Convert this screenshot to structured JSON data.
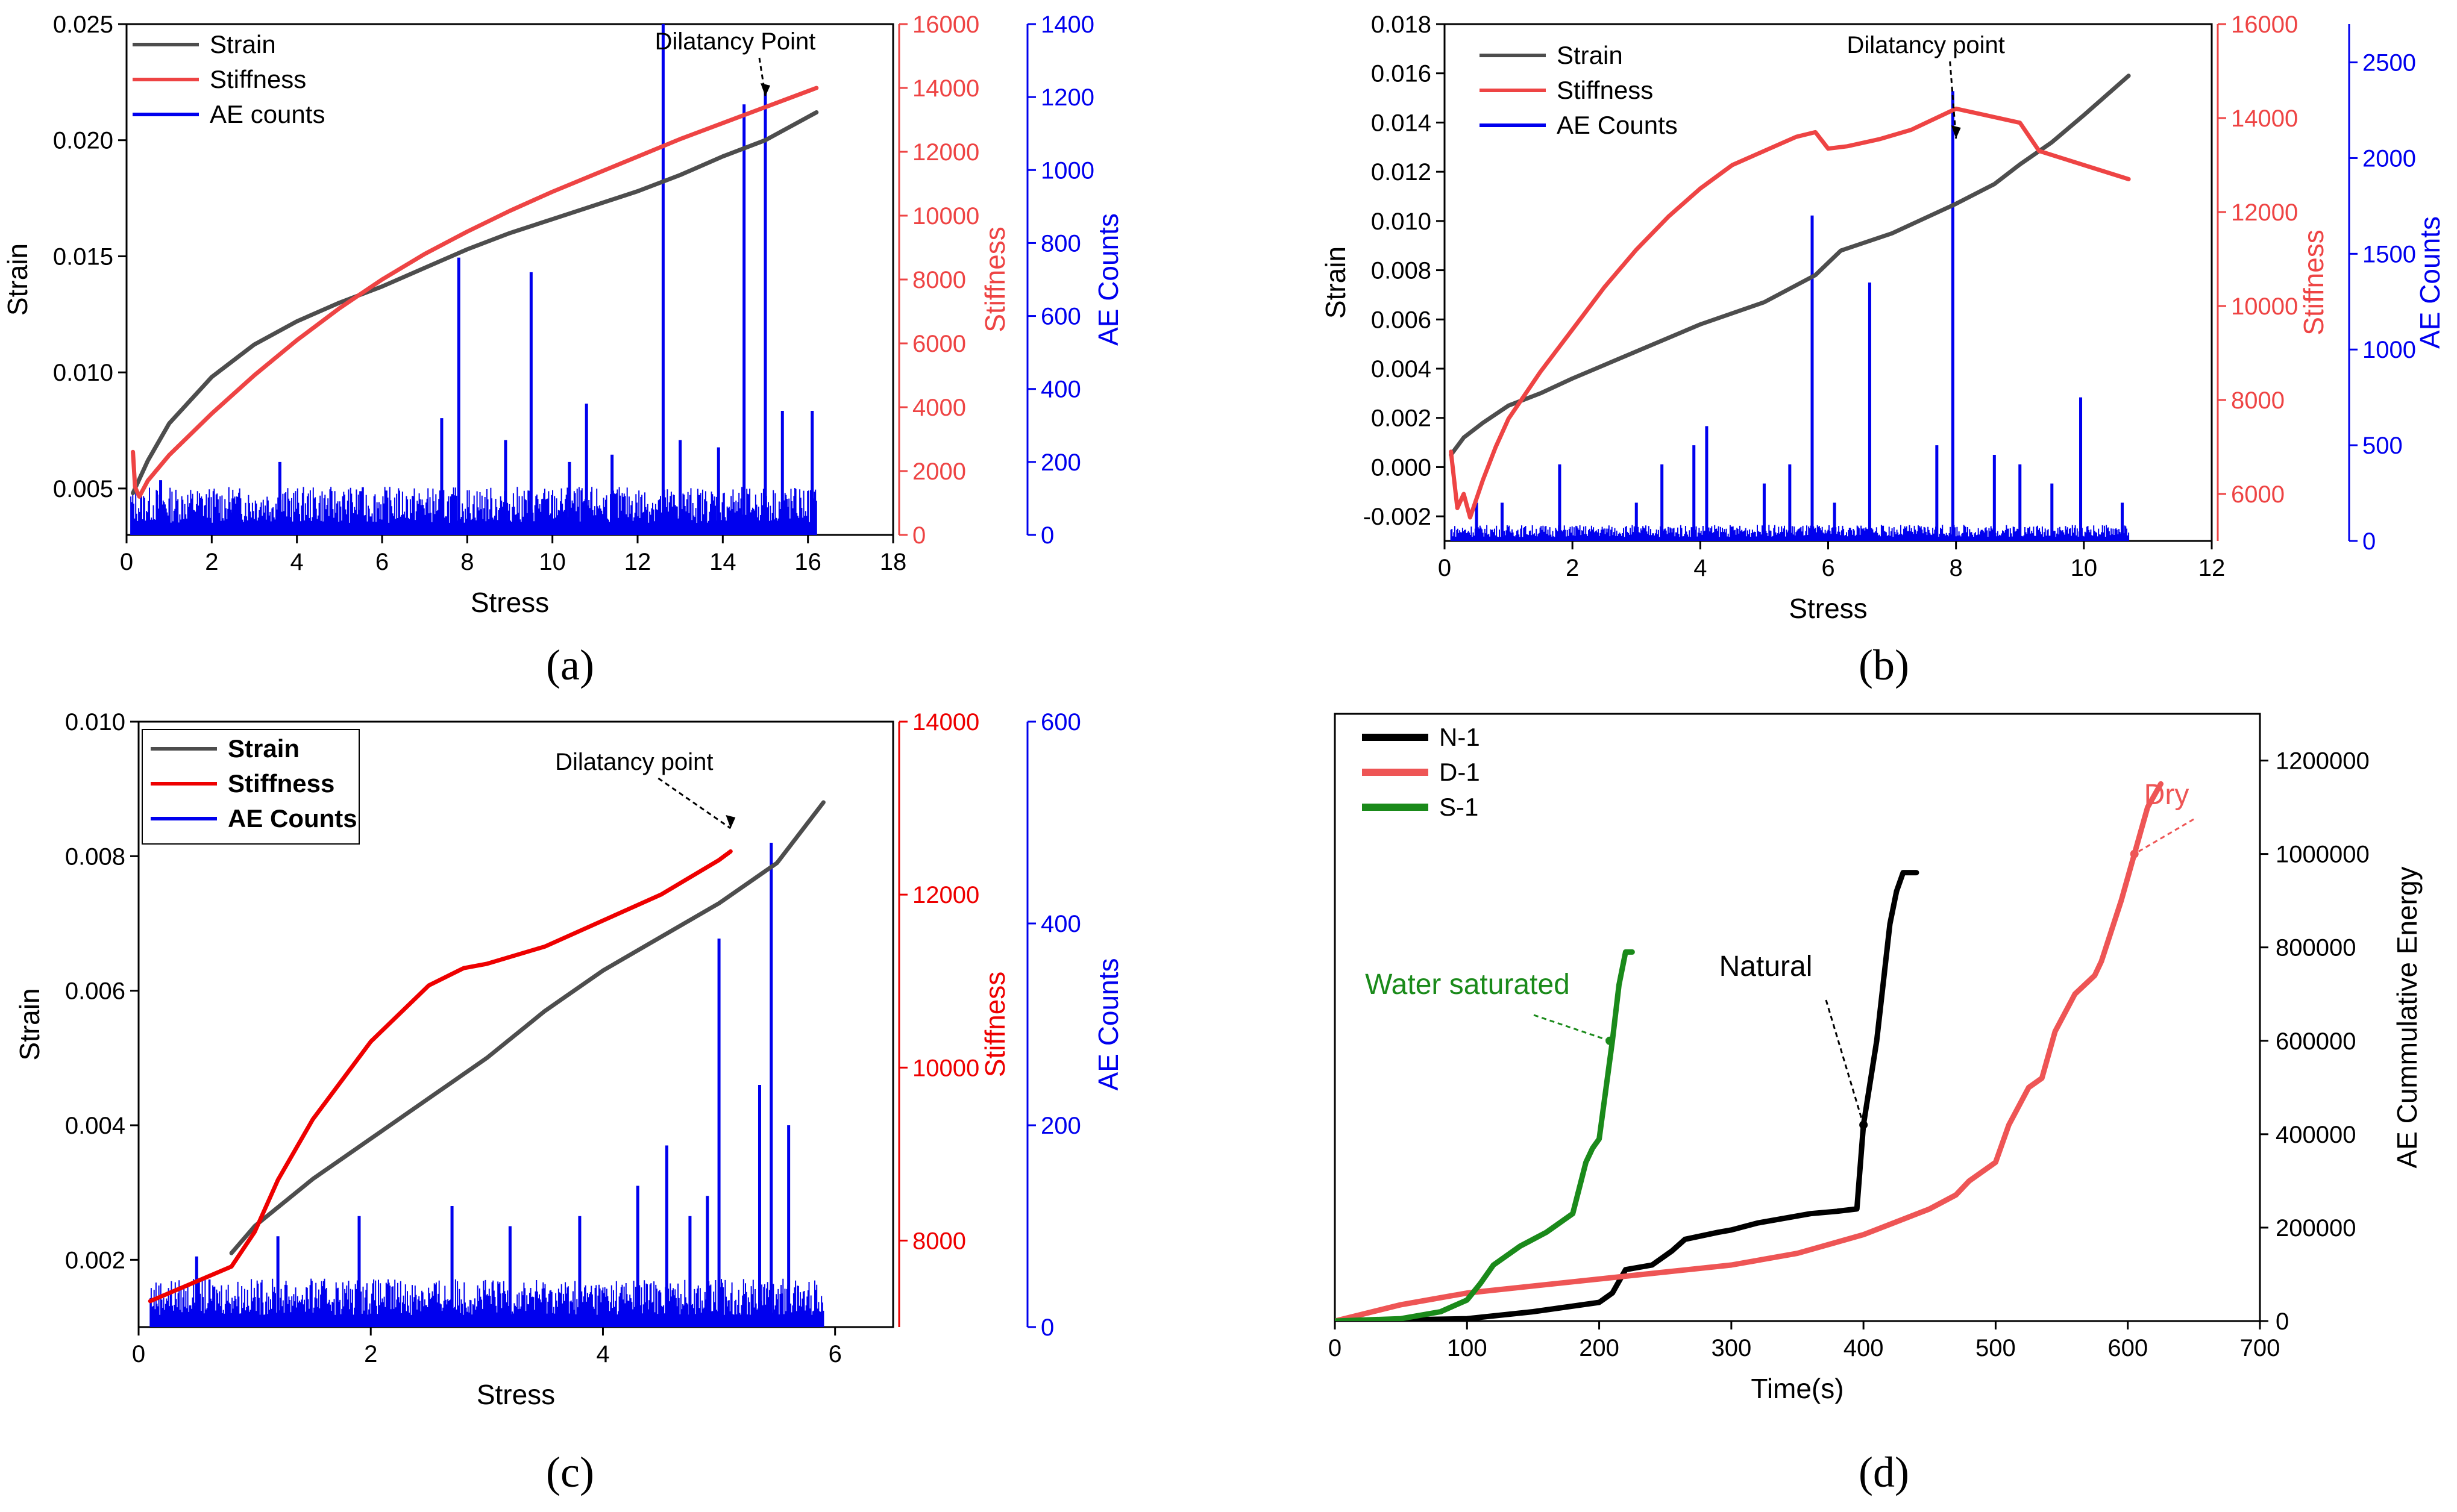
{
  "panel_labels": [
    "(a)",
    "(b)",
    "(c)",
    "(d)"
  ],
  "chart_data": [
    {
      "type": "line",
      "title": "",
      "xlabel": "Stress",
      "ylabel": "Strain",
      "y2label": "Stiffness",
      "y3label": "AE Counts",
      "xlim": [
        0,
        18
      ],
      "ylim": [
        0.003,
        0.025
      ],
      "y2lim": [
        0,
        16000
      ],
      "y3lim": [
        0,
        1400
      ],
      "xticks": [
        "0",
        "2",
        "4",
        "6",
        "8",
        "10",
        "12",
        "14",
        "16",
        "18"
      ],
      "yticks": [
        "0.005",
        "0.010",
        "0.015",
        "0.020",
        "0.025"
      ],
      "y2ticks": [
        "0",
        "2000",
        "4000",
        "6000",
        "8000",
        "10000",
        "12000",
        "14000",
        "16000"
      ],
      "y3ticks": [
        "0",
        "200",
        "400",
        "600",
        "800",
        "1000",
        "1200",
        "1400"
      ],
      "legend_position": "top-left",
      "series": [
        {
          "name": "Strain",
          "axis": "left",
          "color": "#4d4d4d",
          "x": [
            0.15,
            0.5,
            1,
            2,
            3,
            4,
            5,
            6,
            7,
            8,
            9,
            10,
            11,
            12,
            13,
            14,
            15,
            16,
            16.2
          ],
          "values": [
            0.0048,
            0.0062,
            0.0078,
            0.0098,
            0.0112,
            0.0122,
            0.013,
            0.0137,
            0.0145,
            0.0153,
            0.016,
            0.0166,
            0.0172,
            0.0178,
            0.0185,
            0.0193,
            0.02,
            0.021,
            0.0212
          ]
        },
        {
          "name": "Stiffness",
          "axis": "right",
          "color": "#ee4444",
          "x": [
            0.15,
            0.2,
            0.3,
            0.5,
            1,
            2,
            3,
            4,
            5,
            6,
            7,
            8,
            9,
            10,
            11,
            12,
            13,
            14,
            15,
            16,
            16.2
          ],
          "values": [
            2600,
            1500,
            1200,
            1700,
            2500,
            3800,
            5000,
            6100,
            7100,
            8000,
            8800,
            9500,
            10150,
            10750,
            11300,
            11850,
            12400,
            12900,
            13400,
            13900,
            14000
          ]
        },
        {
          "name": "AE counts",
          "axis": "right2",
          "color": "#0000ee",
          "spikes_x": [
            0.8,
            2.5,
            3.6,
            5.5,
            7.4,
            7.8,
            8.9,
            9.5,
            10.4,
            10.8,
            11.4,
            12.6,
            13.0,
            13.9,
            14.5,
            15.0,
            15.4,
            16.1
          ],
          "spikes_y": [
            150,
            100,
            200,
            120,
            320,
            760,
            260,
            720,
            200,
            360,
            220,
            1400,
            260,
            240,
            1180,
            1220,
            340,
            340
          ],
          "baseline": 110
        }
      ],
      "annotations": [
        {
          "text": "Dilatancy Point",
          "x": 15.0
        }
      ]
    },
    {
      "type": "line",
      "title": "",
      "xlabel": "Stress",
      "ylabel": "Strain",
      "y2label": "Stiffness",
      "y3label": "AE Counts",
      "xlim": [
        0,
        12
      ],
      "ylim": [
        -0.003,
        0.018
      ],
      "y2lim": [
        5000,
        16000
      ],
      "y3lim": [
        0,
        2700
      ],
      "xticks": [
        "0",
        "2",
        "4",
        "6",
        "8",
        "10",
        "12"
      ],
      "yticks": [
        "-0.002",
        "0.000",
        "0.002",
        "0.004",
        "0.006",
        "0.008",
        "0.010",
        "0.012",
        "0.014",
        "0.016",
        "0.018"
      ],
      "y2ticks": [
        "6000",
        "8000",
        "10000",
        "12000",
        "14000",
        "16000"
      ],
      "y3ticks": [
        "0",
        "500",
        "1000",
        "1500",
        "2000",
        "2500"
      ],
      "legend_position": "top-left",
      "series": [
        {
          "name": "Strain",
          "axis": "left",
          "color": "#4d4d4d",
          "x": [
            0.1,
            0.3,
            0.6,
            1,
            1.5,
            2,
            3,
            4,
            5,
            5.8,
            6.2,
            7,
            8,
            8.6,
            9,
            9.5,
            10,
            10.7
          ],
          "values": [
            0.0005,
            0.0012,
            0.0018,
            0.0025,
            0.003,
            0.0036,
            0.0047,
            0.0058,
            0.0067,
            0.0078,
            0.0088,
            0.0095,
            0.0107,
            0.0115,
            0.0123,
            0.0132,
            0.0143,
            0.0159
          ]
        },
        {
          "name": "Stiffness",
          "axis": "right",
          "color": "#ee4444",
          "x": [
            0.1,
            0.2,
            0.3,
            0.4,
            0.6,
            0.8,
            1,
            1.5,
            2,
            2.5,
            3,
            3.5,
            4,
            4.5,
            5,
            5.5,
            5.8,
            6.0,
            6.3,
            6.8,
            7.3,
            8,
            8.5,
            9.0,
            9.3,
            10,
            10.7
          ],
          "values": [
            6900,
            5700,
            6000,
            5500,
            6300,
            7000,
            7600,
            8600,
            9500,
            10400,
            11200,
            11900,
            12500,
            13000,
            13300,
            13600,
            13700,
            13350,
            13400,
            13550,
            13750,
            14200,
            14050,
            13900,
            13300,
            13000,
            12700
          ]
        },
        {
          "name": "AE Counts",
          "axis": "right2",
          "color": "#0000ee",
          "spikes_x": [
            0.5,
            0.9,
            1.8,
            3.0,
            3.4,
            3.9,
            4.1,
            5.0,
            5.4,
            5.75,
            6.1,
            6.65,
            7.7,
            7.95,
            8.6,
            9.0,
            9.5,
            9.95,
            10.6
          ],
          "spikes_y": [
            200,
            200,
            400,
            200,
            400,
            500,
            600,
            300,
            400,
            1700,
            200,
            1350,
            500,
            2350,
            450,
            400,
            300,
            750,
            200
          ],
          "baseline": 70
        }
      ],
      "annotations": [
        {
          "text": "Dilatancy point",
          "x": 8.0
        }
      ]
    },
    {
      "type": "line",
      "title": "",
      "xlabel": "Stress",
      "ylabel": "Strain",
      "y2label": "Stiffness",
      "y3label": "AE Counts",
      "xlim": [
        0,
        6.5
      ],
      "ylim": [
        0.001,
        0.01
      ],
      "y2lim": [
        7000,
        14000
      ],
      "y3lim": [
        0,
        600
      ],
      "xticks": [
        "0",
        "2",
        "4",
        "6"
      ],
      "yticks": [
        "0.002",
        "0.004",
        "0.006",
        "0.008",
        "0.010"
      ],
      "y2ticks": [
        "8000",
        "10000",
        "12000",
        "14000"
      ],
      "y3ticks": [
        "0",
        "200",
        "400",
        "600"
      ],
      "legend_position": "top-left",
      "series": [
        {
          "name": "Strain",
          "axis": "left",
          "color": "#4d4d4d",
          "x": [
            0.8,
            1,
            1.5,
            2,
            2.5,
            3,
            3.5,
            4,
            4.5,
            5,
            5.5,
            5.9
          ],
          "values": [
            0.0021,
            0.0025,
            0.0032,
            0.0038,
            0.0044,
            0.005,
            0.0057,
            0.0063,
            0.0068,
            0.0073,
            0.0079,
            0.0088
          ]
        },
        {
          "name": "Stiffness",
          "axis": "right",
          "color": "#ee0000",
          "x": [
            0.1,
            0.8,
            1,
            1.2,
            1.5,
            2,
            2.5,
            2.8,
            3,
            3.5,
            4,
            4.5,
            5,
            5.1
          ],
          "values": [
            7300,
            7700,
            8100,
            8700,
            9400,
            10300,
            10950,
            11150,
            11200,
            11400,
            11700,
            12000,
            12400,
            12500
          ]
        },
        {
          "name": "AE Counts",
          "axis": "right2",
          "color": "#0000ee",
          "spikes_x": [
            0.5,
            1.2,
            1.9,
            2.7,
            3.2,
            3.8,
            4.3,
            4.55,
            4.75,
            4.9,
            5.0,
            5.35,
            5.45,
            5.6
          ],
          "spikes_y": [
            70,
            90,
            110,
            120,
            100,
            110,
            140,
            180,
            110,
            130,
            385,
            240,
            480,
            200
          ],
          "baseline": 40
        }
      ],
      "annotations": [
        {
          "text": "Dilatancy point",
          "x": 5.1
        }
      ]
    },
    {
      "type": "line",
      "title": "",
      "xlabel": "Time(s)",
      "ylabel": "AE Cummulative Energy",
      "xlim": [
        0,
        700
      ],
      "ylim": [
        0,
        1300000
      ],
      "xticks": [
        "0",
        "100",
        "200",
        "300",
        "400",
        "500",
        "600",
        "700"
      ],
      "yticks": [
        "0",
        "200000",
        "400000",
        "600000",
        "800000",
        "1000000",
        "1200000"
      ],
      "legend_position": "top-left",
      "series": [
        {
          "name": "N-1",
          "label": "Natural",
          "color": "#000000",
          "x": [
            0,
            100,
            150,
            200,
            210,
            220,
            240,
            255,
            265,
            290,
            300,
            320,
            340,
            360,
            380,
            395,
            400,
            410,
            420,
            425,
            430,
            440
          ],
          "values": [
            0,
            5000,
            20000,
            40000,
            60000,
            110000,
            120000,
            150000,
            175000,
            190000,
            195000,
            210000,
            220000,
            230000,
            235000,
            240000,
            420000,
            600000,
            850000,
            920000,
            960000,
            960000
          ]
        },
        {
          "name": "D-1",
          "label": "Dry",
          "color": "#ee5555",
          "x": [
            0,
            50,
            100,
            150,
            200,
            250,
            300,
            350,
            400,
            450,
            470,
            480,
            500,
            510,
            525,
            535,
            545,
            560,
            575,
            580,
            595,
            605,
            615,
            625
          ],
          "values": [
            0,
            35000,
            60000,
            75000,
            90000,
            105000,
            120000,
            145000,
            185000,
            240000,
            270000,
            300000,
            340000,
            420000,
            500000,
            520000,
            620000,
            700000,
            740000,
            770000,
            900000,
            1000000,
            1100000,
            1150000
          ]
        },
        {
          "name": "S-1",
          "label": "Water saturated",
          "color": "#1a8a1a",
          "x": [
            0,
            50,
            80,
            100,
            110,
            120,
            140,
            160,
            180,
            190,
            195,
            200,
            210,
            215,
            220,
            225
          ],
          "values": [
            0,
            5000,
            20000,
            45000,
            80000,
            120000,
            160000,
            190000,
            230000,
            340000,
            370000,
            390000,
            600000,
            720000,
            790000,
            790000
          ]
        }
      ]
    }
  ]
}
